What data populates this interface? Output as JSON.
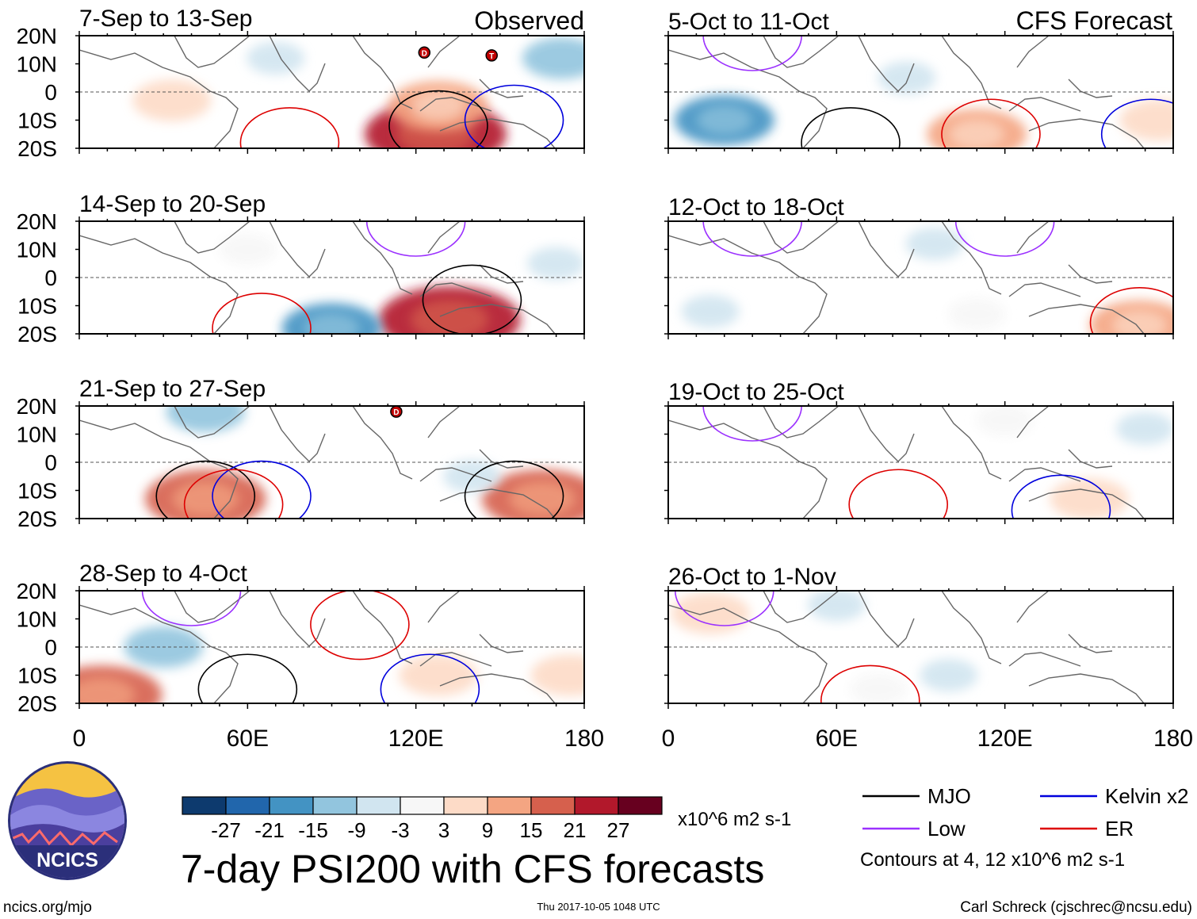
{
  "chart_data": {
    "type": "heatmap",
    "title": "7-day PSI200 with CFS forecasts",
    "units": "x10^6 m2 s-1",
    "contour_note": "Contours at 4, 12 x10^6 m2 s-1",
    "x_ticks": [
      "0",
      "60E",
      "120E",
      "180"
    ],
    "x_values": [
      0,
      60,
      120,
      180
    ],
    "y_ticks": [
      "20N",
      "10N",
      "0",
      "10S",
      "20S"
    ],
    "y_values": [
      20,
      10,
      0,
      -10,
      -20
    ],
    "xlim": [
      0,
      180
    ],
    "ylim": [
      -20,
      20
    ],
    "column_labels": {
      "left": "Observed",
      "right": "CFS Forecast"
    },
    "colorbar": {
      "levels": [
        "-27",
        "-21",
        "-15",
        "-9",
        "-3",
        "3",
        "9",
        "15",
        "21",
        "27"
      ],
      "colors": [
        "#0d3a6e",
        "#2166ac",
        "#4393c3",
        "#92c5de",
        "#d1e5f0",
        "#f7f7f7",
        "#fddbc7",
        "#f4a582",
        "#d6604d",
        "#b2182b",
        "#67001f"
      ]
    },
    "legend": [
      {
        "label": "MJO",
        "color": "#000000"
      },
      {
        "label": "Kelvin x2",
        "color": "#0000dd"
      },
      {
        "label": "Low",
        "color": "#9b30ff"
      },
      {
        "label": "ER",
        "color": "#dd0000"
      }
    ],
    "panels": [
      {
        "label": "7-Sep to 13-Sep",
        "column": "observed",
        "row": 0,
        "anomalies": [
          {
            "lon": 127,
            "lat": -15,
            "value": 27
          },
          {
            "lon": 128,
            "lat": -5,
            "value": 15
          },
          {
            "lon": 33,
            "lat": -3,
            "value": 9
          },
          {
            "lon": 172,
            "lat": 12,
            "value": -9
          },
          {
            "lon": 70,
            "lat": 12,
            "value": -3
          }
        ],
        "contours": [
          {
            "type": "MJO",
            "lon": 128,
            "lat": -12
          },
          {
            "type": "Kelvin x2",
            "lon": 155,
            "lat": -10
          },
          {
            "type": "ER",
            "lon": 75,
            "lat": -18
          }
        ]
      },
      {
        "label": "14-Sep to 20-Sep",
        "column": "observed",
        "row": 1,
        "anomalies": [
          {
            "lon": 132,
            "lat": -15,
            "value": 27
          },
          {
            "lon": 60,
            "lat": 10,
            "value": 3
          },
          {
            "lon": 90,
            "lat": -18,
            "value": -15
          },
          {
            "lon": 170,
            "lat": 5,
            "value": -3
          }
        ],
        "contours": [
          {
            "type": "MJO",
            "lon": 140,
            "lat": -8
          },
          {
            "type": "Low",
            "lon": 120,
            "lat": 20
          },
          {
            "type": "ER",
            "lon": 65,
            "lat": -18
          }
        ]
      },
      {
        "label": "21-Sep to 27-Sep",
        "column": "observed",
        "row": 2,
        "anomalies": [
          {
            "lon": 45,
            "lat": -13,
            "value": 21
          },
          {
            "lon": 165,
            "lat": -13,
            "value": 21
          },
          {
            "lon": 45,
            "lat": 18,
            "value": -9
          },
          {
            "lon": 140,
            "lat": -5,
            "value": -3
          }
        ],
        "contours": [
          {
            "type": "MJO",
            "lon": 45,
            "lat": -12
          },
          {
            "type": "MJO",
            "lon": 155,
            "lat": -12
          },
          {
            "type": "Kelvin x2",
            "lon": 65,
            "lat": -12
          },
          {
            "type": "ER",
            "lon": 55,
            "lat": -15
          }
        ]
      },
      {
        "label": "28-Sep to 4-Oct",
        "column": "observed",
        "row": 3,
        "anomalies": [
          {
            "lon": 8,
            "lat": -17,
            "value": 21
          },
          {
            "lon": 128,
            "lat": -10,
            "value": 9
          },
          {
            "lon": 175,
            "lat": -10,
            "value": 9
          },
          {
            "lon": 30,
            "lat": 0,
            "value": -9
          }
        ],
        "contours": [
          {
            "type": "MJO",
            "lon": 60,
            "lat": -15
          },
          {
            "type": "ER",
            "lon": 100,
            "lat": 8
          },
          {
            "type": "Kelvin x2",
            "lon": 125,
            "lat": -15
          },
          {
            "type": "Low",
            "lon": 40,
            "lat": 20
          }
        ]
      },
      {
        "label": "5-Oct to 11-Oct",
        "column": "forecast",
        "row": 0,
        "anomalies": [
          {
            "lon": 110,
            "lat": -15,
            "value": 15
          },
          {
            "lon": 175,
            "lat": -10,
            "value": 9
          },
          {
            "lon": 20,
            "lat": -10,
            "value": -15
          },
          {
            "lon": 85,
            "lat": 5,
            "value": -3
          }
        ],
        "contours": [
          {
            "type": "MJO",
            "lon": 65,
            "lat": -18
          },
          {
            "type": "ER",
            "lon": 115,
            "lat": -15
          },
          {
            "type": "Kelvin x2",
            "lon": 172,
            "lat": -15
          },
          {
            "type": "Low",
            "lon": 30,
            "lat": 20
          }
        ]
      },
      {
        "label": "12-Oct to 18-Oct",
        "column": "forecast",
        "row": 1,
        "anomalies": [
          {
            "lon": 168,
            "lat": -17,
            "value": 15
          },
          {
            "lon": 110,
            "lat": -13,
            "value": 3
          },
          {
            "lon": 95,
            "lat": 12,
            "value": -3
          },
          {
            "lon": 15,
            "lat": -12,
            "value": -3
          }
        ],
        "contours": [
          {
            "type": "ER",
            "lon": 168,
            "lat": -16
          },
          {
            "type": "Low",
            "lon": 30,
            "lat": 20
          },
          {
            "type": "Low",
            "lon": 120,
            "lat": 20
          }
        ]
      },
      {
        "label": "19-Oct to 25-Oct",
        "column": "forecast",
        "row": 2,
        "anomalies": [
          {
            "lon": 150,
            "lat": -13,
            "value": 9
          },
          {
            "lon": 170,
            "lat": 12,
            "value": -3
          },
          {
            "lon": 120,
            "lat": 15,
            "value": 3
          }
        ],
        "contours": [
          {
            "type": "ER",
            "lon": 82,
            "lat": -15
          },
          {
            "type": "Kelvin x2",
            "lon": 140,
            "lat": -17
          },
          {
            "type": "Low",
            "lon": 30,
            "lat": 20
          }
        ]
      },
      {
        "label": "26-Oct to 1-Nov",
        "column": "forecast",
        "row": 3,
        "anomalies": [
          {
            "lon": 15,
            "lat": 12,
            "value": 9
          },
          {
            "lon": 75,
            "lat": -15,
            "value": 3
          },
          {
            "lon": 100,
            "lat": -10,
            "value": -3
          },
          {
            "lon": 60,
            "lat": 15,
            "value": -3
          }
        ],
        "contours": [
          {
            "type": "ER",
            "lon": 72,
            "lat": -19
          },
          {
            "type": "Low",
            "lon": 20,
            "lat": 20
          }
        ]
      }
    ],
    "storm_markers": [
      {
        "panel": 0,
        "lon": 123,
        "lat": 14,
        "label": "D"
      },
      {
        "panel": 0,
        "lon": 147,
        "lat": 13,
        "label": "T"
      },
      {
        "panel": 2,
        "lon": 113,
        "lat": 18,
        "label": "D"
      }
    ]
  },
  "logo": {
    "text": "NCICS"
  },
  "footer": {
    "url": "ncics.org/mjo",
    "timestamp": "Thu 2017-10-05 1048 UTC",
    "author": "Carl Schreck (cjschrec@ncsu.edu)"
  }
}
